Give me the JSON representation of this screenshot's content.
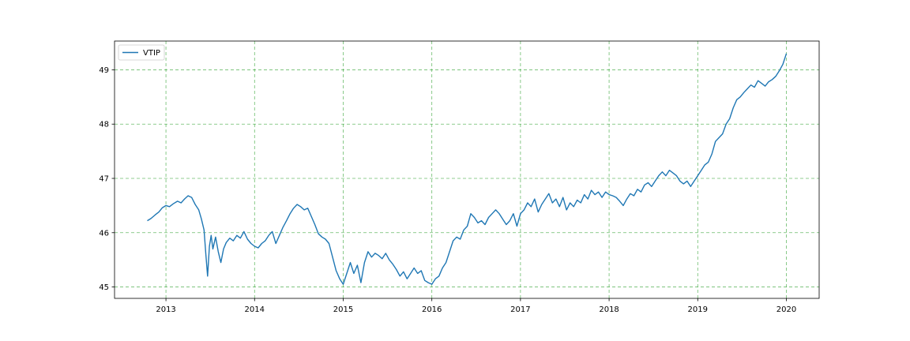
{
  "chart_data": {
    "type": "line",
    "title": "",
    "xlabel": "",
    "ylabel": "",
    "xlim": [
      2012.42,
      2020.37
    ],
    "ylim": [
      44.79,
      49.53
    ],
    "grid": true,
    "grid_color": "#2ca02c",
    "legend_position": "upper-left",
    "x_ticks": [
      {
        "value": 2013,
        "label": "2013"
      },
      {
        "value": 2014,
        "label": "2014"
      },
      {
        "value": 2015,
        "label": "2015"
      },
      {
        "value": 2016,
        "label": "2016"
      },
      {
        "value": 2017,
        "label": "2017"
      },
      {
        "value": 2018,
        "label": "2018"
      },
      {
        "value": 2019,
        "label": "2019"
      },
      {
        "value": 2020,
        "label": "2020"
      }
    ],
    "y_ticks": [
      {
        "value": 45,
        "label": "45"
      },
      {
        "value": 46,
        "label": "46"
      },
      {
        "value": 47,
        "label": "47"
      },
      {
        "value": 48,
        "label": "48"
      },
      {
        "value": 49,
        "label": "49"
      }
    ],
    "series": [
      {
        "name": "VTIP",
        "color": "#1f77b4",
        "points": [
          [
            2012.79,
            46.22
          ],
          [
            2012.83,
            46.26
          ],
          [
            2012.88,
            46.33
          ],
          [
            2012.92,
            46.38
          ],
          [
            2012.96,
            46.46
          ],
          [
            2013.0,
            46.5
          ],
          [
            2013.04,
            46.48
          ],
          [
            2013.08,
            46.53
          ],
          [
            2013.13,
            46.58
          ],
          [
            2013.17,
            46.55
          ],
          [
            2013.21,
            46.62
          ],
          [
            2013.25,
            46.68
          ],
          [
            2013.29,
            46.65
          ],
          [
            2013.33,
            46.52
          ],
          [
            2013.37,
            46.42
          ],
          [
            2013.4,
            46.25
          ],
          [
            2013.43,
            46.05
          ],
          [
            2013.45,
            45.6
          ],
          [
            2013.47,
            45.2
          ],
          [
            2013.49,
            45.75
          ],
          [
            2013.51,
            45.95
          ],
          [
            2013.53,
            45.7
          ],
          [
            2013.56,
            45.92
          ],
          [
            2013.59,
            45.65
          ],
          [
            2013.62,
            45.45
          ],
          [
            2013.65,
            45.7
          ],
          [
            2013.68,
            45.82
          ],
          [
            2013.72,
            45.9
          ],
          [
            2013.76,
            45.85
          ],
          [
            2013.8,
            45.95
          ],
          [
            2013.84,
            45.9
          ],
          [
            2013.88,
            46.02
          ],
          [
            2013.92,
            45.88
          ],
          [
            2013.96,
            45.8
          ],
          [
            2014.0,
            45.75
          ],
          [
            2014.04,
            45.72
          ],
          [
            2014.08,
            45.8
          ],
          [
            2014.12,
            45.85
          ],
          [
            2014.16,
            45.95
          ],
          [
            2014.2,
            46.02
          ],
          [
            2014.24,
            45.8
          ],
          [
            2014.28,
            45.95
          ],
          [
            2014.32,
            46.1
          ],
          [
            2014.36,
            46.22
          ],
          [
            2014.4,
            46.35
          ],
          [
            2014.44,
            46.45
          ],
          [
            2014.48,
            46.52
          ],
          [
            2014.52,
            46.48
          ],
          [
            2014.56,
            46.42
          ],
          [
            2014.6,
            46.45
          ],
          [
            2014.64,
            46.3
          ],
          [
            2014.68,
            46.15
          ],
          [
            2014.72,
            45.98
          ],
          [
            2014.76,
            45.92
          ],
          [
            2014.8,
            45.88
          ],
          [
            2014.84,
            45.8
          ],
          [
            2014.88,
            45.55
          ],
          [
            2014.92,
            45.3
          ],
          [
            2014.96,
            45.15
          ],
          [
            2015.0,
            45.05
          ],
          [
            2015.04,
            45.25
          ],
          [
            2015.08,
            45.45
          ],
          [
            2015.12,
            45.25
          ],
          [
            2015.16,
            45.4
          ],
          [
            2015.2,
            45.08
          ],
          [
            2015.24,
            45.45
          ],
          [
            2015.28,
            45.65
          ],
          [
            2015.32,
            45.55
          ],
          [
            2015.36,
            45.62
          ],
          [
            2015.4,
            45.58
          ],
          [
            2015.44,
            45.52
          ],
          [
            2015.48,
            45.62
          ],
          [
            2015.52,
            45.5
          ],
          [
            2015.56,
            45.42
          ],
          [
            2015.6,
            45.32
          ],
          [
            2015.64,
            45.2
          ],
          [
            2015.68,
            45.28
          ],
          [
            2015.72,
            45.15
          ],
          [
            2015.76,
            45.25
          ],
          [
            2015.8,
            45.35
          ],
          [
            2015.84,
            45.25
          ],
          [
            2015.88,
            45.3
          ],
          [
            2015.92,
            45.12
          ],
          [
            2015.96,
            45.08
          ],
          [
            2016.0,
            45.05
          ],
          [
            2016.04,
            45.15
          ],
          [
            2016.08,
            45.2
          ],
          [
            2016.12,
            45.35
          ],
          [
            2016.16,
            45.45
          ],
          [
            2016.2,
            45.65
          ],
          [
            2016.24,
            45.85
          ],
          [
            2016.28,
            45.92
          ],
          [
            2016.32,
            45.88
          ],
          [
            2016.36,
            46.05
          ],
          [
            2016.4,
            46.12
          ],
          [
            2016.44,
            46.35
          ],
          [
            2016.48,
            46.28
          ],
          [
            2016.52,
            46.18
          ],
          [
            2016.56,
            46.22
          ],
          [
            2016.6,
            46.15
          ],
          [
            2016.64,
            46.28
          ],
          [
            2016.68,
            46.35
          ],
          [
            2016.72,
            46.42
          ],
          [
            2016.76,
            46.35
          ],
          [
            2016.8,
            46.25
          ],
          [
            2016.84,
            46.15
          ],
          [
            2016.88,
            46.22
          ],
          [
            2016.92,
            46.35
          ],
          [
            2016.96,
            46.12
          ],
          [
            2017.0,
            46.35
          ],
          [
            2017.04,
            46.42
          ],
          [
            2017.08,
            46.55
          ],
          [
            2017.12,
            46.48
          ],
          [
            2017.16,
            46.62
          ],
          [
            2017.2,
            46.38
          ],
          [
            2017.24,
            46.52
          ],
          [
            2017.28,
            46.62
          ],
          [
            2017.32,
            46.72
          ],
          [
            2017.36,
            46.55
          ],
          [
            2017.4,
            46.62
          ],
          [
            2017.44,
            46.48
          ],
          [
            2017.48,
            46.65
          ],
          [
            2017.52,
            46.42
          ],
          [
            2017.56,
            46.55
          ],
          [
            2017.6,
            46.48
          ],
          [
            2017.64,
            46.6
          ],
          [
            2017.68,
            46.55
          ],
          [
            2017.72,
            46.7
          ],
          [
            2017.76,
            46.62
          ],
          [
            2017.8,
            46.78
          ],
          [
            2017.84,
            46.7
          ],
          [
            2017.88,
            46.75
          ],
          [
            2017.92,
            46.65
          ],
          [
            2017.96,
            46.75
          ],
          [
            2018.0,
            46.7
          ],
          [
            2018.04,
            46.68
          ],
          [
            2018.08,
            46.65
          ],
          [
            2018.12,
            46.58
          ],
          [
            2018.16,
            46.5
          ],
          [
            2018.2,
            46.62
          ],
          [
            2018.24,
            46.72
          ],
          [
            2018.28,
            46.68
          ],
          [
            2018.32,
            46.8
          ],
          [
            2018.36,
            46.75
          ],
          [
            2018.4,
            46.88
          ],
          [
            2018.44,
            46.92
          ],
          [
            2018.48,
            46.85
          ],
          [
            2018.52,
            46.95
          ],
          [
            2018.56,
            47.05
          ],
          [
            2018.6,
            47.12
          ],
          [
            2018.64,
            47.05
          ],
          [
            2018.68,
            47.15
          ],
          [
            2018.72,
            47.1
          ],
          [
            2018.76,
            47.05
          ],
          [
            2018.8,
            46.95
          ],
          [
            2018.84,
            46.9
          ],
          [
            2018.88,
            46.95
          ],
          [
            2018.92,
            46.85
          ],
          [
            2018.96,
            46.95
          ],
          [
            2019.0,
            47.05
          ],
          [
            2019.04,
            47.15
          ],
          [
            2019.08,
            47.25
          ],
          [
            2019.12,
            47.3
          ],
          [
            2019.16,
            47.45
          ],
          [
            2019.2,
            47.68
          ],
          [
            2019.24,
            47.75
          ],
          [
            2019.28,
            47.82
          ],
          [
            2019.32,
            48.0
          ],
          [
            2019.36,
            48.1
          ],
          [
            2019.4,
            48.3
          ],
          [
            2019.44,
            48.45
          ],
          [
            2019.48,
            48.5
          ],
          [
            2019.52,
            48.58
          ],
          [
            2019.56,
            48.65
          ],
          [
            2019.6,
            48.72
          ],
          [
            2019.64,
            48.68
          ],
          [
            2019.68,
            48.8
          ],
          [
            2019.72,
            48.75
          ],
          [
            2019.76,
            48.7
          ],
          [
            2019.8,
            48.78
          ],
          [
            2019.84,
            48.82
          ],
          [
            2019.88,
            48.88
          ],
          [
            2019.92,
            48.98
          ],
          [
            2019.96,
            49.1
          ],
          [
            2020.0,
            49.3
          ]
        ]
      }
    ]
  }
}
